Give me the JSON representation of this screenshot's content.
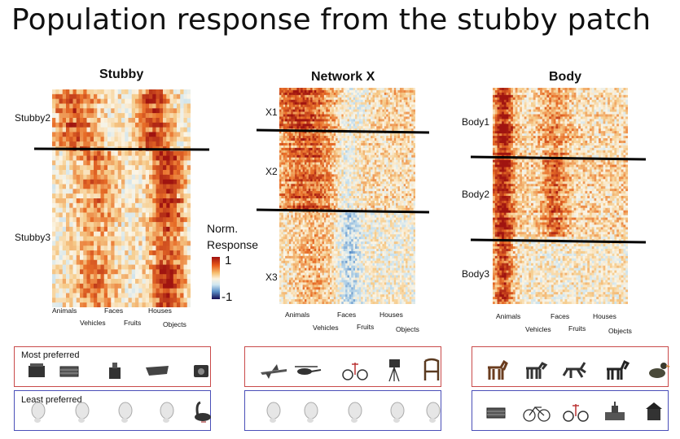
{
  "title": "Population response from the stubby patch",
  "panels": [
    {
      "title": "Stubby",
      "groups": [
        "Stubby2",
        "Stubby3"
      ],
      "categories_top": [
        "Animals",
        "Faces",
        "Houses"
      ],
      "categories_bottom": [
        "Vehicles",
        "Fruits",
        "Objects"
      ]
    },
    {
      "title": "Network X",
      "groups": [
        "X1",
        "X2",
        "X3"
      ],
      "categories_top": [
        "Animals",
        "Faces",
        "Houses"
      ],
      "categories_bottom": [
        "Vehicles",
        "Fruits",
        "Objects"
      ]
    },
    {
      "title": "Body",
      "groups": [
        "Body1",
        "Body2",
        "Body3"
      ],
      "categories_top": [
        "Animals",
        "Faces",
        "Houses"
      ],
      "categories_bottom": [
        "Vehicles",
        "Fruits",
        "Objects"
      ]
    }
  ],
  "colorbar": {
    "label_line1": "Norm.",
    "label_line2": "Response",
    "max": "1",
    "min": "-1"
  },
  "preferred": {
    "most_label": "Most preferred",
    "least_label": "Least preferred",
    "most": [
      [
        "box-object",
        "crate-object",
        "machine-object",
        "flat-object",
        "speaker-object"
      ],
      [
        "airplane",
        "helicopter",
        "tricycle",
        "camera-tripod",
        "wicker-chair"
      ],
      [
        "horse",
        "dog",
        "running-horse",
        "dalmatian",
        "duck"
      ]
    ],
    "least": [
      [
        "face",
        "face",
        "face",
        "face",
        "swan"
      ],
      [
        "face",
        "face",
        "face",
        "face",
        "face"
      ],
      [
        "crate-object",
        "bicycle",
        "tricycle",
        "building",
        "house"
      ]
    ]
  },
  "colors": {
    "most_border": "#c94a4a",
    "least_border": "#4a4fb8",
    "divider": "#000000"
  }
}
